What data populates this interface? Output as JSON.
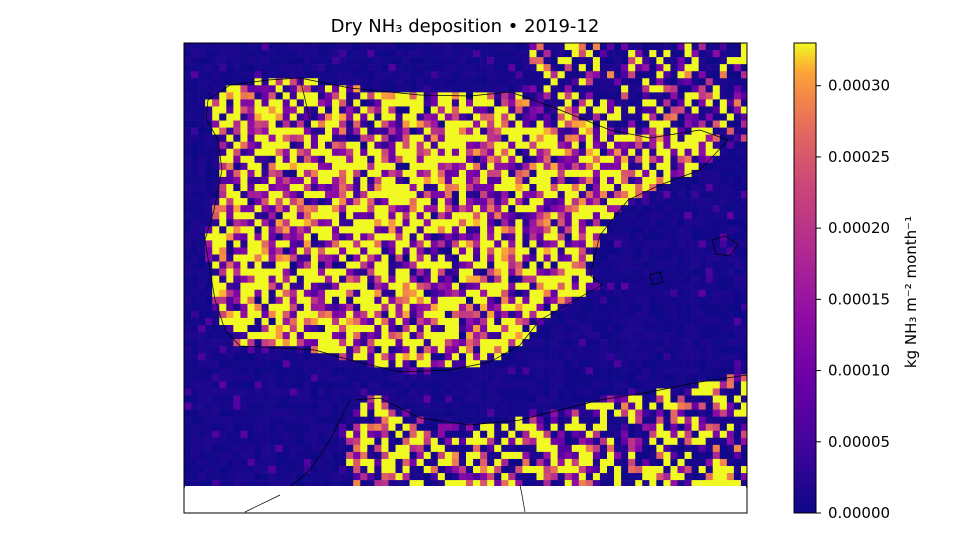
{
  "chart_data": {
    "type": "heatmap",
    "title": "Dry NH₃ deposition  •  2019-12",
    "colorbar": {
      "label": "kg NH₃ m⁻² month⁻¹",
      "range": [
        0.0,
        0.00033
      ],
      "ticks": [
        0.0,
        5e-05,
        0.0001,
        0.00015,
        0.0002,
        0.00025,
        0.0003
      ],
      "tick_labels": [
        "0.00000",
        "0.00005",
        "0.00010",
        "0.00015",
        "0.00020",
        "0.00025",
        "0.00030"
      ],
      "colormap": "plasma",
      "placement": "right"
    },
    "grid": false,
    "region": "Iberian Peninsula, western Mediterranean and northern Africa",
    "description_values": {
      "sea_typical": 1e-05,
      "land_typical_range": [
        3e-05,
        0.00033
      ],
      "grid_cells_x": 80,
      "grid_cells_y": 63
    }
  }
}
